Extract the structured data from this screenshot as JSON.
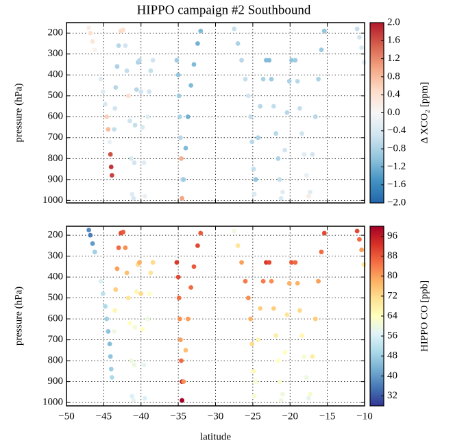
{
  "chart_data": [
    {
      "type": "scatter",
      "title": "HIPPO campaign #2 Southbound",
      "ylabel": "pressure (hPa)",
      "colorbar_label": "Δ XCO₂ [ppm]",
      "xlim": [
        -50,
        -10
      ],
      "xticks": [
        -50,
        -45,
        -40,
        -35,
        -30,
        -25,
        -20,
        -15,
        -10
      ],
      "ylim": [
        1012,
        150
      ],
      "yticks": [
        200,
        300,
        400,
        500,
        600,
        700,
        800,
        900,
        1000
      ],
      "grid": true,
      "clim": [
        -2,
        2
      ],
      "cticks": [
        {
          "value": 2,
          "label": "2.0"
        },
        {
          "value": 1.6,
          "label": "1.6"
        },
        {
          "value": 1.2,
          "label": "1.2"
        },
        {
          "value": 0.8,
          "label": "0.8"
        },
        {
          "value": 0.4,
          "label": "0.4"
        },
        {
          "value": 0,
          "label": "0.0"
        },
        {
          "value": -0.4,
          "label": "−0.4"
        },
        {
          "value": -0.8,
          "label": "−0.8"
        },
        {
          "value": -1.2,
          "label": "−1.2"
        },
        {
          "value": -1.6,
          "label": "−1.6"
        },
        {
          "value": -2,
          "label": "−2.0"
        }
      ],
      "colormap": [
        "#2166ac",
        "#4393c3",
        "#92c5de",
        "#d1e5f0",
        "#f7f7f7",
        "#fddbc7",
        "#f4a582",
        "#d6604d",
        "#b2182b"
      ],
      "series": [
        {
          "x": [
            -47.0,
            -46.8,
            -46.5,
            -46.2
          ],
          "y": [
            175,
            200,
            240,
            280
          ],
          "values": [
            0.2,
            0.4,
            0.3,
            0.1
          ]
        },
        {
          "x": [
            -45.4,
            -45.1,
            -44.8,
            -44.6,
            -44.4,
            -44.2,
            -44.1,
            -44.0,
            -43.9
          ],
          "y": [
            420,
            480,
            540,
            600,
            660,
            720,
            780,
            840,
            880
          ],
          "values": [
            -0.3,
            -0.3,
            -0.4,
            0.6,
            0.8,
            -0.2,
            1.6,
            1.8,
            1.7
          ]
        },
        {
          "x": [
            -43.6,
            -43.5,
            -43.4,
            -43.2,
            -43.0,
            -42.7,
            -42.4,
            -42.1,
            -41.9,
            -41.7,
            -41.5,
            -41.3,
            -41.2
          ],
          "y": [
            660,
            560,
            460,
            360,
            260,
            190,
            185,
            260,
            380,
            500,
            620,
            800,
            970
          ],
          "values": [
            -0.6,
            -0.5,
            -0.7,
            -0.8,
            -0.7,
            0.5,
            0.4,
            -0.5,
            -0.6,
            0.4,
            -0.5,
            -0.4,
            -0.3
          ]
        },
        {
          "x": [
            -41.0,
            -40.9,
            -40.8,
            -40.6,
            -40.4,
            -40.2,
            -40.0,
            -39.8,
            -39.6,
            -39.5
          ],
          "y": [
            990,
            820,
            640,
            470,
            340,
            330,
            480,
            650,
            820,
            980
          ],
          "values": [
            -0.4,
            -0.5,
            -0.6,
            -0.7,
            -0.8,
            -0.7,
            -0.5,
            -0.4,
            -0.3,
            -0.2
          ]
        },
        {
          "x": [
            -39.1,
            -38.9,
            -38.7,
            -38.4
          ],
          "y": [
            600,
            480,
            380,
            330
          ],
          "values": [
            -0.3,
            -0.5,
            -0.6,
            -0.5
          ]
        },
        {
          "x": [
            -35.2,
            -35.0,
            -34.9,
            -34.8,
            -34.7,
            -34.6,
            -34.5,
            -34.5,
            -34.3,
            -34.0,
            -33.7,
            -33.3,
            -32.9,
            -32.4,
            -32.0
          ],
          "y": [
            330,
            400,
            500,
            600,
            700,
            800,
            900,
            990,
            900,
            750,
            600,
            450,
            350,
            250,
            190
          ],
          "values": [
            -0.9,
            -1.0,
            -0.9,
            -0.8,
            -0.7,
            0.9,
            -0.4,
            1.0,
            -0.9,
            -1.1,
            -1.2,
            -1.1,
            -1.1,
            -1.2,
            -1.1
          ]
        },
        {
          "x": [
            -27.5,
            -27.0,
            -26.5,
            -26.0,
            -25.6,
            -25.3,
            -25.1,
            -24.9,
            -24.8
          ],
          "y": [
            180,
            250,
            330,
            420,
            500,
            600,
            720,
            850,
            970
          ],
          "values": [
            -0.6,
            -0.8,
            -0.7,
            -0.6,
            -0.5,
            -0.6,
            -0.7,
            -0.6,
            -0.4
          ]
        },
        {
          "x": [
            -24.6,
            -24.3,
            -24.0,
            -23.6,
            -23.2,
            -22.8,
            -22.5,
            -22.2,
            -21.9,
            -21.6,
            -21.4,
            -21.2
          ],
          "y": [
            900,
            700,
            550,
            420,
            330,
            330,
            420,
            550,
            680,
            800,
            900,
            990
          ],
          "values": [
            -1.0,
            -0.8,
            -0.7,
            -0.8,
            -1.1,
            -1.1,
            -0.9,
            -0.6,
            -0.7,
            -0.8,
            -0.6,
            -0.4
          ]
        },
        {
          "x": [
            -21.0,
            -20.7,
            -20.4,
            -20.1,
            -19.8,
            -19.3,
            -19.0,
            -18.7,
            -18.4,
            -18.1,
            -17.8,
            -17.5
          ],
          "y": [
            960,
            760,
            580,
            430,
            330,
            330,
            430,
            560,
            680,
            780,
            880,
            980
          ],
          "values": [
            -0.3,
            -0.5,
            -0.7,
            -0.8,
            -1.0,
            -0.9,
            -0.7,
            -0.6,
            -0.5,
            -0.3,
            -0.2,
            0.2
          ]
        },
        {
          "x": [
            -17.3,
            -17.0,
            -16.6,
            -16.2,
            -15.8,
            -15.4
          ],
          "y": [
            960,
            780,
            600,
            420,
            280,
            190
          ],
          "values": [
            -0.3,
            -0.5,
            -0.7,
            -0.8,
            -0.9,
            -1.0
          ]
        },
        {
          "x": [
            -11.0,
            -10.7,
            -10.4,
            -10.1
          ],
          "y": [
            180,
            220,
            270,
            340
          ],
          "values": [
            -0.6,
            -0.5,
            -0.4,
            -0.3
          ]
        }
      ]
    },
    {
      "type": "scatter",
      "xlabel": "latitude",
      "ylabel": "pressure (hPa)",
      "colorbar_label": "HIPPO CO [ppb]",
      "xlim": [
        -50,
        -10
      ],
      "xticks": [
        {
          "value": -50,
          "label": "−50"
        },
        {
          "value": -45,
          "label": "−45"
        },
        {
          "value": -40,
          "label": "−40"
        },
        {
          "value": -35,
          "label": "−35"
        },
        {
          "value": -30,
          "label": "−30"
        },
        {
          "value": -25,
          "label": "−25"
        },
        {
          "value": -20,
          "label": "−20"
        },
        {
          "value": -15,
          "label": "−15"
        },
        {
          "value": -10,
          "label": "−10"
        }
      ],
      "ylim": [
        1016,
        157
      ],
      "yticks": [
        200,
        300,
        400,
        500,
        600,
        700,
        800,
        900,
        1000
      ],
      "grid": true,
      "clim": [
        28,
        100
      ],
      "cticks": [
        32,
        40,
        48,
        56,
        64,
        72,
        80,
        88,
        96
      ],
      "colormap": [
        "#313695",
        "#4575b4",
        "#74add1",
        "#abd9e9",
        "#e0f3f8",
        "#ffffbf",
        "#fee090",
        "#fdae61",
        "#f46d43",
        "#d73027",
        "#a50026"
      ],
      "series": [
        {
          "x": [
            -47.0,
            -46.8,
            -46.5,
            -46.2
          ],
          "y": [
            175,
            200,
            240,
            280
          ],
          "values": [
            38,
            36,
            40,
            48
          ]
        },
        {
          "x": [
            -45.4,
            -45.1,
            -44.8,
            -44.6,
            -44.4,
            -44.2,
            -44.1,
            -44.0,
            -43.9
          ],
          "y": [
            420,
            480,
            540,
            600,
            660,
            720,
            780,
            840,
            880
          ],
          "values": [
            56,
            52,
            50,
            48,
            46,
            45,
            46,
            48,
            50
          ]
        },
        {
          "x": [
            -43.6,
            -43.5,
            -43.4,
            -43.2,
            -43.0,
            -42.7,
            -42.4,
            -42.1,
            -41.9,
            -41.7,
            -41.5,
            -41.3,
            -41.2
          ],
          "y": [
            660,
            560,
            460,
            360,
            260,
            190,
            185,
            260,
            380,
            500,
            620,
            800,
            970
          ],
          "values": [
            60,
            66,
            74,
            80,
            86,
            90,
            88,
            82,
            76,
            70,
            64,
            60,
            56
          ]
        },
        {
          "x": [
            -41.0,
            -40.9,
            -40.8,
            -40.6,
            -40.4,
            -40.2,
            -40.0,
            -39.8,
            -39.6,
            -39.5
          ],
          "y": [
            990,
            820,
            640,
            470,
            340,
            330,
            480,
            650,
            820,
            980
          ],
          "values": [
            58,
            60,
            62,
            66,
            72,
            78,
            72,
            64,
            58,
            56
          ]
        },
        {
          "x": [
            -39.1,
            -38.9,
            -38.7,
            -38.4
          ],
          "y": [
            600,
            480,
            380,
            330
          ],
          "values": [
            60,
            64,
            70,
            72
          ]
        },
        {
          "x": [
            -35.2,
            -35.0,
            -34.9,
            -34.8,
            -34.7,
            -34.6,
            -34.5,
            -34.5,
            -34.3,
            -34.0,
            -33.7,
            -33.3,
            -32.9,
            -32.4,
            -32.0
          ],
          "y": [
            330,
            400,
            500,
            600,
            700,
            800,
            900,
            990,
            900,
            750,
            600,
            450,
            350,
            250,
            190
          ],
          "values": [
            92,
            90,
            86,
            82,
            80,
            86,
            96,
            100,
            82,
            76,
            80,
            86,
            88,
            90,
            88
          ]
        },
        {
          "x": [
            -27.5,
            -27.0,
            -26.5,
            -26.0,
            -25.6,
            -25.3,
            -25.1,
            -24.9,
            -24.8
          ],
          "y": [
            180,
            250,
            330,
            420,
            500,
            600,
            720,
            850,
            970
          ],
          "values": [
            60,
            70,
            80,
            84,
            82,
            78,
            72,
            66,
            62
          ]
        },
        {
          "x": [
            -24.6,
            -24.3,
            -24.0,
            -23.6,
            -23.2,
            -22.8,
            -22.5,
            -22.2,
            -21.9,
            -21.6,
            -21.4,
            -21.2
          ],
          "y": [
            900,
            700,
            550,
            420,
            330,
            330,
            420,
            550,
            680,
            800,
            900,
            990
          ],
          "values": [
            62,
            66,
            74,
            84,
            92,
            90,
            82,
            74,
            68,
            64,
            62,
            60
          ]
        },
        {
          "x": [
            -21.0,
            -20.7,
            -20.4,
            -20.1,
            -19.8,
            -19.3,
            -19.0,
            -18.7,
            -18.4,
            -18.1,
            -17.8,
            -17.5
          ],
          "y": [
            960,
            760,
            580,
            430,
            330,
            330,
            430,
            560,
            680,
            780,
            880,
            980
          ],
          "values": [
            60,
            64,
            70,
            78,
            88,
            86,
            78,
            72,
            66,
            62,
            60,
            58
          ]
        },
        {
          "x": [
            -17.3,
            -17.0,
            -16.6,
            -16.2,
            -15.8,
            -15.4
          ],
          "y": [
            960,
            780,
            600,
            420,
            280,
            190
          ],
          "values": [
            62,
            68,
            74,
            80,
            86,
            90
          ]
        },
        {
          "x": [
            -11.0,
            -10.7,
            -10.4,
            -10.1
          ],
          "y": [
            180,
            220,
            270,
            340
          ],
          "values": [
            90,
            86,
            80,
            70
          ]
        }
      ]
    }
  ]
}
